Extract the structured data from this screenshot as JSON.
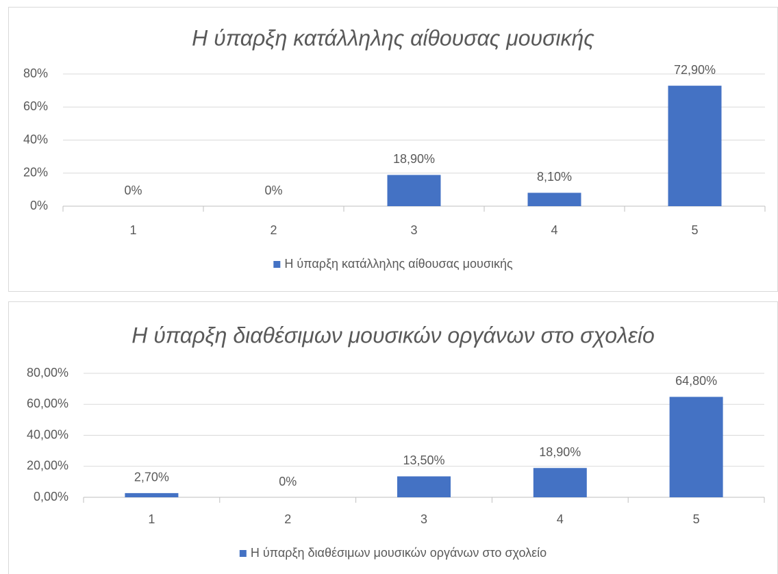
{
  "chart_data": [
    {
      "type": "bar",
      "title": "Η ύπαρξη κατάλληλης αίθουσας μουσικής",
      "categories": [
        "1",
        "2",
        "3",
        "4",
        "5"
      ],
      "series": [
        {
          "name": "Η ύπαρξη κατάλληλης αίθουσας μουσικής",
          "color": "#4472c4",
          "values": [
            0,
            0,
            18.9,
            8.1,
            72.9
          ],
          "value_labels": [
            "0%",
            "0%",
            "18,90%",
            "8,10%",
            "72,90%"
          ]
        }
      ],
      "ylim": [
        0,
        80
      ],
      "yticks": [
        {
          "value": 0,
          "label": "0%"
        },
        {
          "value": 20,
          "label": "20%"
        },
        {
          "value": 40,
          "label": "40%"
        },
        {
          "value": 60,
          "label": "60%"
        },
        {
          "value": 80,
          "label": "80%"
        }
      ],
      "grid": true,
      "legend": "bottom"
    },
    {
      "type": "bar",
      "title": "Η ύπαρξη διαθέσιμων μουσικών οργάνων στο σχολείο",
      "categories": [
        "1",
        "2",
        "3",
        "4",
        "5"
      ],
      "series": [
        {
          "name": "Η ύπαρξη διαθέσιμων μουσικών οργάνων στο σχολείο",
          "color": "#4472c4",
          "values": [
            2.7,
            0,
            13.5,
            18.9,
            64.8
          ],
          "value_labels": [
            "2,70%",
            "0%",
            "13,50%",
            "18,90%",
            "64,80%"
          ]
        }
      ],
      "ylim": [
        0,
        80
      ],
      "yticks": [
        {
          "value": 0,
          "label": "0,00%"
        },
        {
          "value": 20,
          "label": "20,00%"
        },
        {
          "value": 40,
          "label": "40,00%"
        },
        {
          "value": 60,
          "label": "60,00%"
        },
        {
          "value": 80,
          "label": "80,00%"
        }
      ],
      "grid": true,
      "legend": "bottom"
    }
  ]
}
